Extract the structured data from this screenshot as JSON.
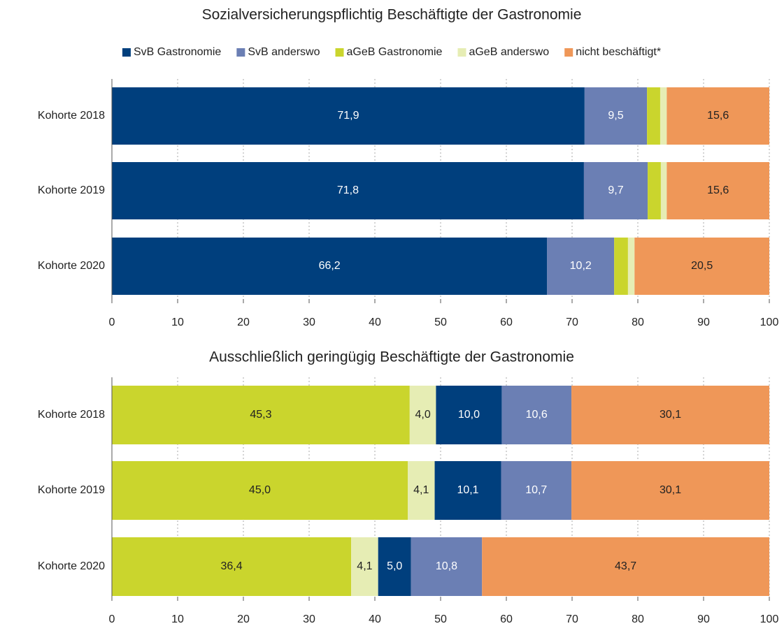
{
  "chart_data": [
    {
      "type": "stacked-bar-horizontal",
      "title": "Sozialversicherungspflichtig Beschäftigte der Gastronomie",
      "categories": [
        "Kohorte 2018",
        "Kohorte 2019",
        "Kohorte 2020"
      ],
      "legend": true,
      "series": [
        {
          "name": "SvB Gastronomie",
          "color": "#003f7d",
          "label_color": "#ffffff",
          "values": [
            71.9,
            71.8,
            66.2
          ],
          "value_labels": [
            "71,9",
            "71,8",
            "66,2"
          ]
        },
        {
          "name": "SvB anderswo",
          "color": "#6b7fb4",
          "label_color": "#ffffff",
          "values": [
            9.5,
            9.7,
            10.2
          ],
          "value_labels": [
            "9,5",
            "9,7",
            "10,2"
          ]
        },
        {
          "name": "aGeB Gastronomie",
          "color": "#cad52d",
          "label_color": "#222222",
          "values": [
            2.0,
            2.0,
            2.1
          ],
          "value_labels": [
            null,
            null,
            null
          ]
        },
        {
          "name": "aGeB anderswo",
          "color": "#e6edb4",
          "label_color": "#222222",
          "values": [
            1.0,
            0.9,
            1.0
          ],
          "value_labels": [
            null,
            null,
            null
          ]
        },
        {
          "name": "nicht beschäftigt*",
          "color": "#ef9758",
          "label_color": "#222222",
          "values": [
            15.6,
            15.6,
            20.5
          ],
          "value_labels": [
            "15,6",
            "15,6",
            "20,5"
          ]
        }
      ],
      "xlim": [
        0,
        100
      ],
      "xticks": [
        0,
        10,
        20,
        30,
        40,
        50,
        60,
        70,
        80,
        90,
        100
      ],
      "grid": true
    },
    {
      "type": "stacked-bar-horizontal",
      "title": "Ausschließlich geringügig Beschäftigte der Gastronomie",
      "categories": [
        "Kohorte 2018",
        "Kohorte 2019",
        "Kohorte 2020"
      ],
      "legend": false,
      "series": [
        {
          "color": "#cad52d",
          "label_color": "#222222",
          "values": [
            45.3,
            45.0,
            36.4
          ],
          "value_labels": [
            "45,3",
            "45,0",
            "36,4"
          ]
        },
        {
          "color": "#e6edb4",
          "label_color": "#222222",
          "values": [
            4.0,
            4.1,
            4.1
          ],
          "value_labels": [
            "4,0",
            "4,1",
            "4,1"
          ]
        },
        {
          "color": "#003f7d",
          "label_color": "#ffffff",
          "values": [
            10.0,
            10.1,
            5.0
          ],
          "value_labels": [
            "10,0",
            "10,1",
            "5,0"
          ]
        },
        {
          "color": "#6b7fb4",
          "label_color": "#ffffff",
          "values": [
            10.6,
            10.7,
            10.8
          ],
          "value_labels": [
            "10,6",
            "10,7",
            "10,8"
          ]
        },
        {
          "color": "#ef9758",
          "label_color": "#222222",
          "values": [
            30.1,
            30.1,
            43.7
          ],
          "value_labels": [
            "30,1",
            "30,1",
            "43,7"
          ]
        }
      ],
      "xlim": [
        0,
        100
      ],
      "xticks": [
        0,
        10,
        20,
        30,
        40,
        50,
        60,
        70,
        80,
        90,
        100
      ],
      "grid": true
    }
  ]
}
